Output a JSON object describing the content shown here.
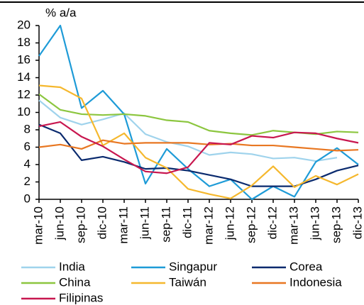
{
  "chart_data": {
    "type": "line",
    "y_axis_label": "% a/a",
    "categories": [
      "mar-10",
      "jun-10",
      "sep-10",
      "dic-10",
      "mar-11",
      "jun-11",
      "sep-11",
      "dic-11",
      "mar-12",
      "jun-12",
      "sep-12",
      "dic-12",
      "mar-13",
      "jun-13",
      "sep-13",
      "dic-13"
    ],
    "ylim": [
      0,
      20
    ],
    "yticks": [
      0,
      2,
      4,
      6,
      8,
      10,
      12,
      14,
      16,
      18,
      20
    ],
    "grid": false,
    "legend": "bottom",
    "series": [
      {
        "name": "India",
        "color": "#9fd3ec",
        "values": [
          11.4,
          9.4,
          8.6,
          9.2,
          9.9,
          7.5,
          6.6,
          6.1,
          5.1,
          5.4,
          5.2,
          4.7,
          4.8,
          4.4,
          4.8,
          null
        ]
      },
      {
        "name": "Singapur",
        "color": "#1e9bd7",
        "values": [
          16.5,
          20,
          10.5,
          12.5,
          9.8,
          1.8,
          5.8,
          3.5,
          1.5,
          2.3,
          0.0,
          1.5,
          0.3,
          4.3,
          5.9,
          4.0
        ]
      },
      {
        "name": "Corea",
        "color": "#0a2a6e",
        "values": [
          8.6,
          7.6,
          4.5,
          4.9,
          4.3,
          3.5,
          3.6,
          3.3,
          2.8,
          2.3,
          1.5,
          1.5,
          1.5,
          2.3,
          3.3,
          3.9
        ]
      },
      {
        "name": "China",
        "color": "#8cc63f",
        "values": [
          12.1,
          10.3,
          9.8,
          9.7,
          9.8,
          9.6,
          9.1,
          8.9,
          7.9,
          7.6,
          7.4,
          7.9,
          7.7,
          7.5,
          7.8,
          7.7
        ]
      },
      {
        "name": "Taiwán",
        "color": "#f5b82e",
        "values": [
          13.1,
          12.9,
          11.6,
          6.2,
          7.6,
          4.8,
          3.6,
          1.2,
          0.6,
          0.1,
          1.6,
          3.8,
          1.4,
          2.7,
          1.7,
          2.9
        ]
      },
      {
        "name": "Indonesia",
        "color": "#e87722",
        "values": [
          6.0,
          6.3,
          5.8,
          6.8,
          6.4,
          6.5,
          6.5,
          6.5,
          6.3,
          6.4,
          6.2,
          6.2,
          6.0,
          5.8,
          5.6,
          5.7
        ]
      },
      {
        "name": "Filipinas",
        "color": "#c8174f",
        "values": [
          8.4,
          8.9,
          7.2,
          6.1,
          4.6,
          3.2,
          3.0,
          3.7,
          6.5,
          6.3,
          7.3,
          7.1,
          7.7,
          7.6,
          7.0,
          6.5
        ]
      }
    ]
  }
}
